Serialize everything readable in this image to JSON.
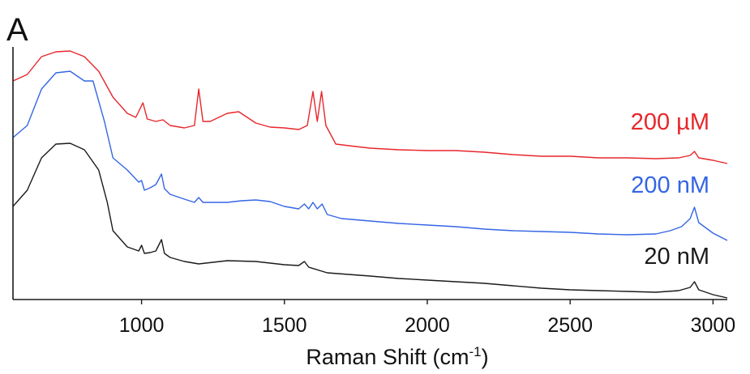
{
  "chart_data": {
    "type": "line",
    "panel_label": "A",
    "xlabel_main": "Raman Shift (cm",
    "xlabel_sup": "-1",
    "xlabel_end": ")",
    "ylabel": "",
    "xlim": [
      550,
      3050
    ],
    "x_ticks": [
      1000,
      1500,
      2000,
      2500,
      3000
    ],
    "x_tick_labels": [
      "1000",
      "1500",
      "2000",
      "2500",
      "3000"
    ],
    "y_ticks_visible": false,
    "grid": false,
    "legend": "inline-right",
    "series": [
      {
        "name": "200 µM",
        "color": "#e8262b",
        "points": [
          [
            550,
            100
          ],
          [
            600,
            92
          ],
          [
            650,
            70
          ],
          [
            700,
            64
          ],
          [
            750,
            63
          ],
          [
            800,
            70
          ],
          [
            850,
            88
          ],
          [
            900,
            120
          ],
          [
            950,
            140
          ],
          [
            980,
            145
          ],
          [
            1005,
            127
          ],
          [
            1020,
            147
          ],
          [
            1050,
            150
          ],
          [
            1075,
            148
          ],
          [
            1100,
            155
          ],
          [
            1150,
            158
          ],
          [
            1185,
            155
          ],
          [
            1200,
            110
          ],
          [
            1215,
            150
          ],
          [
            1240,
            150
          ],
          [
            1270,
            145
          ],
          [
            1300,
            140
          ],
          [
            1340,
            138
          ],
          [
            1370,
            145
          ],
          [
            1400,
            152
          ],
          [
            1450,
            157
          ],
          [
            1500,
            158
          ],
          [
            1550,
            160
          ],
          [
            1580,
            155
          ],
          [
            1600,
            113
          ],
          [
            1615,
            150
          ],
          [
            1630,
            113
          ],
          [
            1645,
            155
          ],
          [
            1680,
            178
          ],
          [
            1750,
            181
          ],
          [
            1800,
            183
          ],
          [
            1900,
            185
          ],
          [
            2000,
            186
          ],
          [
            2100,
            186
          ],
          [
            2200,
            188
          ],
          [
            2300,
            191
          ],
          [
            2400,
            193
          ],
          [
            2500,
            193
          ],
          [
            2600,
            195
          ],
          [
            2700,
            195
          ],
          [
            2800,
            196
          ],
          [
            2880,
            195
          ],
          [
            2920,
            192
          ],
          [
            2935,
            187
          ],
          [
            2950,
            195
          ],
          [
            3000,
            198
          ],
          [
            3050,
            202
          ]
        ]
      },
      {
        "name": "200 nM",
        "color": "#3465e5",
        "points": [
          [
            550,
            170
          ],
          [
            600,
            155
          ],
          [
            650,
            110
          ],
          [
            700,
            90
          ],
          [
            750,
            88
          ],
          [
            800,
            100
          ],
          [
            830,
            100
          ],
          [
            870,
            150
          ],
          [
            900,
            195
          ],
          [
            950,
            210
          ],
          [
            990,
            225
          ],
          [
            1000,
            223
          ],
          [
            1010,
            235
          ],
          [
            1030,
            232
          ],
          [
            1050,
            228
          ],
          [
            1070,
            215
          ],
          [
            1080,
            233
          ],
          [
            1100,
            240
          ],
          [
            1150,
            246
          ],
          [
            1185,
            250
          ],
          [
            1200,
            244
          ],
          [
            1215,
            250
          ],
          [
            1250,
            250
          ],
          [
            1300,
            250
          ],
          [
            1350,
            248
          ],
          [
            1400,
            247
          ],
          [
            1450,
            249
          ],
          [
            1500,
            255
          ],
          [
            1550,
            258
          ],
          [
            1570,
            252
          ],
          [
            1585,
            258
          ],
          [
            1600,
            250
          ],
          [
            1615,
            258
          ],
          [
            1632,
            252
          ],
          [
            1650,
            265
          ],
          [
            1700,
            270
          ],
          [
            1800,
            273
          ],
          [
            1900,
            276
          ],
          [
            2000,
            278
          ],
          [
            2100,
            280
          ],
          [
            2200,
            283
          ],
          [
            2300,
            285
          ],
          [
            2400,
            286
          ],
          [
            2500,
            287
          ],
          [
            2600,
            289
          ],
          [
            2700,
            290
          ],
          [
            2800,
            289
          ],
          [
            2850,
            285
          ],
          [
            2890,
            280
          ],
          [
            2920,
            270
          ],
          [
            2935,
            256
          ],
          [
            2950,
            275
          ],
          [
            3000,
            288
          ],
          [
            3050,
            297
          ]
        ]
      },
      {
        "name": "20 nM",
        "color": "#1a1a1a",
        "points": [
          [
            550,
            255
          ],
          [
            600,
            235
          ],
          [
            650,
            195
          ],
          [
            700,
            178
          ],
          [
            750,
            177
          ],
          [
            800,
            185
          ],
          [
            850,
            210
          ],
          [
            880,
            250
          ],
          [
            900,
            285
          ],
          [
            950,
            305
          ],
          [
            990,
            310
          ],
          [
            1000,
            303
          ],
          [
            1010,
            313
          ],
          [
            1030,
            312
          ],
          [
            1050,
            310
          ],
          [
            1070,
            296
          ],
          [
            1080,
            313
          ],
          [
            1100,
            318
          ],
          [
            1150,
            323
          ],
          [
            1200,
            326
          ],
          [
            1300,
            322
          ],
          [
            1400,
            323
          ],
          [
            1500,
            327
          ],
          [
            1550,
            328
          ],
          [
            1570,
            323
          ],
          [
            1585,
            330
          ],
          [
            1650,
            337
          ],
          [
            1800,
            341
          ],
          [
            1900,
            344
          ],
          [
            2000,
            346
          ],
          [
            2100,
            348
          ],
          [
            2200,
            350
          ],
          [
            2300,
            353
          ],
          [
            2400,
            356
          ],
          [
            2500,
            358
          ],
          [
            2600,
            359
          ],
          [
            2700,
            360
          ],
          [
            2800,
            361
          ],
          [
            2880,
            359
          ],
          [
            2920,
            355
          ],
          [
            2935,
            348
          ],
          [
            2950,
            358
          ],
          [
            3000,
            364
          ],
          [
            3050,
            368
          ]
        ]
      }
    ]
  }
}
